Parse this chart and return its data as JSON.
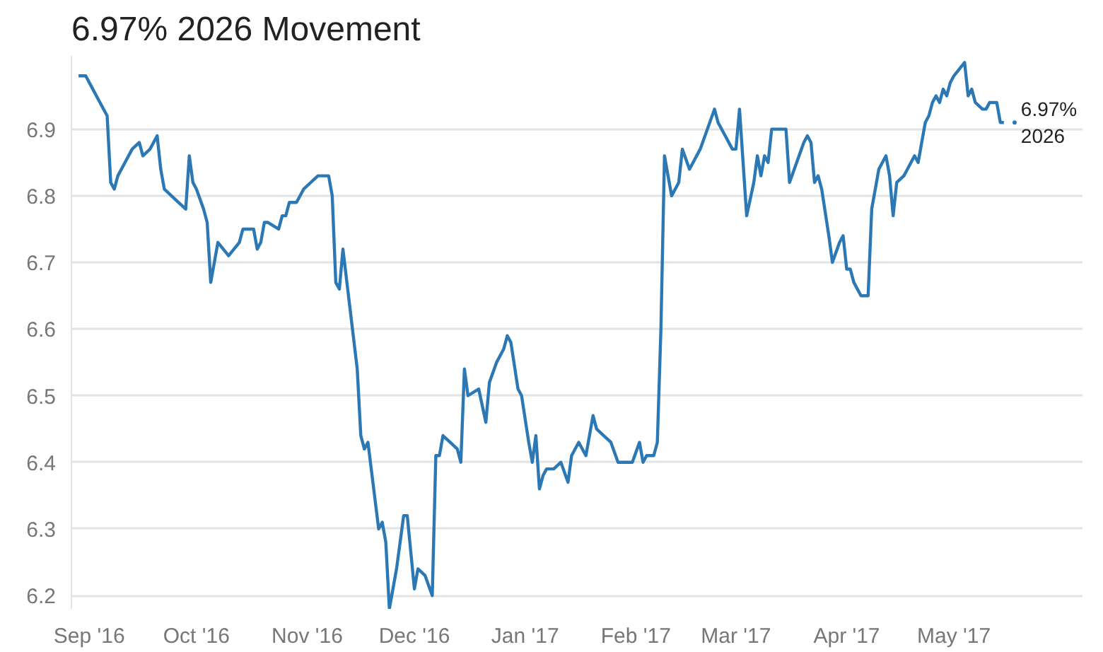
{
  "chart_data": {
    "type": "line",
    "title": "6.97% 2026 Movement",
    "x": [
      "2016-08-29",
      "2016-08-31",
      "2016-09-02",
      "2016-09-04",
      "2016-09-06",
      "2016-09-07",
      "2016-09-08",
      "2016-09-09",
      "2016-09-11",
      "2016-09-13",
      "2016-09-15",
      "2016-09-16",
      "2016-09-18",
      "2016-09-20",
      "2016-09-21",
      "2016-09-22",
      "2016-09-24",
      "2016-09-26",
      "2016-09-28",
      "2016-09-29",
      "2016-09-30",
      "2016-10-01",
      "2016-10-03",
      "2016-10-04",
      "2016-10-05",
      "2016-10-07",
      "2016-10-10",
      "2016-10-13",
      "2016-10-14",
      "2016-10-17",
      "2016-10-18",
      "2016-10-19",
      "2016-10-20",
      "2016-10-21",
      "2016-10-24",
      "2016-10-25",
      "2016-10-26",
      "2016-10-27",
      "2016-10-29",
      "2016-10-31",
      "2016-11-02",
      "2016-11-04",
      "2016-11-07",
      "2016-11-08",
      "2016-11-09",
      "2016-11-10",
      "2016-11-11",
      "2016-11-15",
      "2016-11-16",
      "2016-11-17",
      "2016-11-18",
      "2016-11-21",
      "2016-11-22",
      "2016-11-23",
      "2016-11-24",
      "2016-11-26",
      "2016-11-28",
      "2016-11-29",
      "2016-12-01",
      "2016-12-02",
      "2016-12-04",
      "2016-12-06",
      "2016-12-07",
      "2016-12-08",
      "2016-12-09",
      "2016-12-11",
      "2016-12-13",
      "2016-12-14",
      "2016-12-15",
      "2016-12-16",
      "2016-12-19",
      "2016-12-21",
      "2016-12-22",
      "2016-12-24",
      "2016-12-26",
      "2016-12-27",
      "2016-12-28",
      "2016-12-30",
      "2016-12-31",
      "2017-01-02",
      "2017-01-03",
      "2017-01-04",
      "2017-01-05",
      "2017-01-06",
      "2017-01-07",
      "2017-01-09",
      "2017-01-11",
      "2017-01-13",
      "2017-01-14",
      "2017-01-16",
      "2017-01-18",
      "2017-01-20",
      "2017-01-21",
      "2017-01-23",
      "2017-01-25",
      "2017-01-27",
      "2017-01-30",
      "2017-01-31",
      "2017-02-02",
      "2017-02-03",
      "2017-02-04",
      "2017-02-06",
      "2017-02-07",
      "2017-02-08",
      "2017-02-09",
      "2017-02-11",
      "2017-02-13",
      "2017-02-14",
      "2017-02-16",
      "2017-02-19",
      "2017-02-23",
      "2017-02-24",
      "2017-02-26",
      "2017-02-28",
      "2017-03-01",
      "2017-03-02",
      "2017-03-03",
      "2017-03-04",
      "2017-03-06",
      "2017-03-07",
      "2017-03-08",
      "2017-03-09",
      "2017-03-10",
      "2017-03-11",
      "2017-03-15",
      "2017-03-16",
      "2017-03-18",
      "2017-03-20",
      "2017-03-21",
      "2017-03-22",
      "2017-03-23",
      "2017-03-24",
      "2017-03-25",
      "2017-03-27",
      "2017-03-28",
      "2017-03-30",
      "2017-03-31",
      "2017-04-01",
      "2017-04-02",
      "2017-04-03",
      "2017-04-05",
      "2017-04-07",
      "2017-04-08",
      "2017-04-09",
      "2017-04-10",
      "2017-04-12",
      "2017-04-13",
      "2017-04-14",
      "2017-04-15",
      "2017-04-17",
      "2017-04-18",
      "2017-04-19",
      "2017-04-20",
      "2017-04-21",
      "2017-04-22",
      "2017-04-23",
      "2017-04-24",
      "2017-04-25",
      "2017-04-26",
      "2017-04-27",
      "2017-04-28",
      "2017-04-29",
      "2017-04-30",
      "2017-05-01",
      "2017-05-04",
      "2017-05-05",
      "2017-05-06",
      "2017-05-07",
      "2017-05-09",
      "2017-05-10",
      "2017-05-11",
      "2017-05-13",
      "2017-05-14",
      "2017-05-15"
    ],
    "series": [
      {
        "name": "6.97%\n2026",
        "color": "#2b78b5",
        "values": [
          6.98,
          6.98,
          6.96,
          6.94,
          6.92,
          6.82,
          6.81,
          6.83,
          6.85,
          6.87,
          6.88,
          6.86,
          6.87,
          6.89,
          6.84,
          6.81,
          6.8,
          6.79,
          6.78,
          6.86,
          6.82,
          6.81,
          6.78,
          6.76,
          6.67,
          6.73,
          6.71,
          6.73,
          6.75,
          6.75,
          6.72,
          6.73,
          6.76,
          6.76,
          6.75,
          6.77,
          6.77,
          6.79,
          6.79,
          6.81,
          6.82,
          6.83,
          6.83,
          6.8,
          6.67,
          6.66,
          6.72,
          6.54,
          6.44,
          6.42,
          6.43,
          6.3,
          6.31,
          6.28,
          6.18,
          6.24,
          6.32,
          6.32,
          6.21,
          6.24,
          6.23,
          6.2,
          6.41,
          6.41,
          6.44,
          6.43,
          6.42,
          6.4,
          6.54,
          6.5,
          6.51,
          6.46,
          6.52,
          6.55,
          6.57,
          6.59,
          6.58,
          6.51,
          6.5,
          6.43,
          6.4,
          6.44,
          6.36,
          6.38,
          6.39,
          6.39,
          6.4,
          6.37,
          6.41,
          6.43,
          6.41,
          6.47,
          6.45,
          6.44,
          6.43,
          6.4,
          6.4,
          6.4,
          6.43,
          6.4,
          6.41,
          6.41,
          6.43,
          6.6,
          6.86,
          6.8,
          6.82,
          6.87,
          6.84,
          6.87,
          6.93,
          6.91,
          6.89,
          6.87,
          6.87,
          6.93,
          6.85,
          6.77,
          6.82,
          6.86,
          6.83,
          6.86,
          6.85,
          6.9,
          6.9,
          6.82,
          6.85,
          6.88,
          6.89,
          6.88,
          6.82,
          6.83,
          6.81,
          6.74,
          6.7,
          6.73,
          6.74,
          6.69,
          6.69,
          6.67,
          6.65,
          6.65,
          6.78,
          6.81,
          6.84,
          6.86,
          6.83,
          6.77,
          6.82,
          6.83,
          6.84,
          6.85,
          6.86,
          6.85,
          6.88,
          6.91,
          6.92,
          6.94,
          6.95,
          6.94,
          6.96,
          6.95,
          6.97,
          6.98,
          7.0,
          6.95,
          6.96,
          6.94,
          6.93,
          6.93,
          6.94,
          6.94,
          6.91,
          6.91
        ]
      }
    ],
    "xlim": [
      "2016-08-27",
      "2017-06-06"
    ],
    "xticks": [
      {
        "value": "2016-09-01",
        "label": "Sep '16"
      },
      {
        "value": "2016-10-01",
        "label": "Oct '16"
      },
      {
        "value": "2016-11-01",
        "label": "Nov '16"
      },
      {
        "value": "2016-12-01",
        "label": "Dec '16"
      },
      {
        "value": "2017-01-01",
        "label": "Jan '17"
      },
      {
        "value": "2017-02-01",
        "label": "Feb '17"
      },
      {
        "value": "2017-03-01",
        "label": "Mar '17"
      },
      {
        "value": "2017-04-01",
        "label": "Apr '17"
      },
      {
        "value": "2017-05-01",
        "label": "May '17"
      }
    ],
    "ylim": [
      6.18,
      7.01
    ],
    "yticks": [
      6.2,
      6.3,
      6.4,
      6.5,
      6.6,
      6.7,
      6.8,
      6.9
    ],
    "grid": "y",
    "marker": "none",
    "line_style": "solid"
  }
}
